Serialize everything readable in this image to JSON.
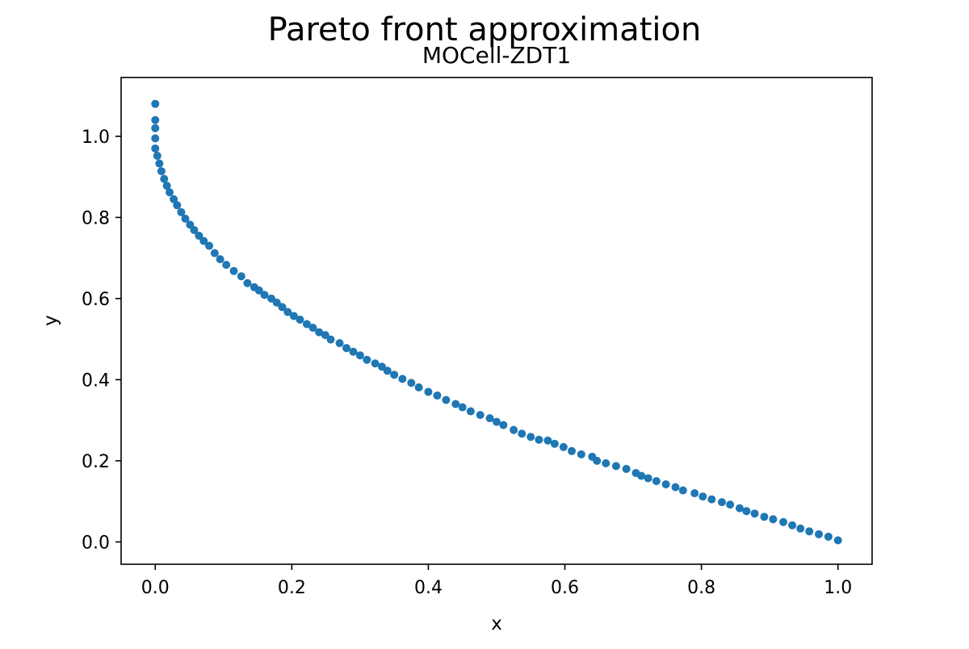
{
  "figure": {
    "suptitle": "Pareto front approximation"
  },
  "chart_data": {
    "type": "scatter",
    "title": "MOCell-ZDT1",
    "xlabel": "x",
    "ylabel": "y",
    "xlim": [
      -0.05,
      1.05
    ],
    "ylim": [
      -0.055,
      1.145
    ],
    "xticks": [
      0.0,
      0.2,
      0.4,
      0.6,
      0.8,
      1.0
    ],
    "xtick_labels": [
      "0.0",
      "0.2",
      "0.4",
      "0.6",
      "0.8",
      "1.0"
    ],
    "yticks": [
      0.0,
      0.2,
      0.4,
      0.6,
      0.8,
      1.0
    ],
    "ytick_labels": [
      "0.0",
      "0.2",
      "0.4",
      "0.6",
      "0.8",
      "1.0"
    ],
    "grid": false,
    "marker_color": "#1f77b4",
    "series": [
      {
        "points": [
          [
            0.0,
            1.08
          ],
          [
            0.0,
            1.04
          ],
          [
            0.0,
            1.02
          ],
          [
            0.0,
            0.995
          ],
          [
            0.0,
            0.97
          ],
          [
            0.003,
            0.952
          ],
          [
            0.006,
            0.933
          ],
          [
            0.009,
            0.914
          ],
          [
            0.013,
            0.895
          ],
          [
            0.017,
            0.878
          ],
          [
            0.021,
            0.862
          ],
          [
            0.027,
            0.845
          ],
          [
            0.032,
            0.83
          ],
          [
            0.038,
            0.813
          ],
          [
            0.044,
            0.797
          ],
          [
            0.051,
            0.782
          ],
          [
            0.057,
            0.769
          ],
          [
            0.064,
            0.755
          ],
          [
            0.071,
            0.742
          ],
          [
            0.079,
            0.73
          ],
          [
            0.087,
            0.712
          ],
          [
            0.095,
            0.697
          ],
          [
            0.104,
            0.683
          ],
          [
            0.115,
            0.668
          ],
          [
            0.126,
            0.655
          ],
          [
            0.135,
            0.638
          ],
          [
            0.145,
            0.628
          ],
          [
            0.152,
            0.62
          ],
          [
            0.16,
            0.609
          ],
          [
            0.17,
            0.6
          ],
          [
            0.178,
            0.59
          ],
          [
            0.186,
            0.579
          ],
          [
            0.194,
            0.567
          ],
          [
            0.203,
            0.557
          ],
          [
            0.212,
            0.548
          ],
          [
            0.222,
            0.537
          ],
          [
            0.231,
            0.528
          ],
          [
            0.24,
            0.517
          ],
          [
            0.249,
            0.51
          ],
          [
            0.257,
            0.499
          ],
          [
            0.27,
            0.49
          ],
          [
            0.28,
            0.478
          ],
          [
            0.29,
            0.469
          ],
          [
            0.3,
            0.46
          ],
          [
            0.31,
            0.449
          ],
          [
            0.322,
            0.44
          ],
          [
            0.332,
            0.432
          ],
          [
            0.34,
            0.422
          ],
          [
            0.35,
            0.412
          ],
          [
            0.362,
            0.402
          ],
          [
            0.375,
            0.392
          ],
          [
            0.386,
            0.381
          ],
          [
            0.4,
            0.37
          ],
          [
            0.413,
            0.361
          ],
          [
            0.426,
            0.35
          ],
          [
            0.44,
            0.34
          ],
          [
            0.45,
            0.332
          ],
          [
            0.462,
            0.322
          ],
          [
            0.476,
            0.313
          ],
          [
            0.49,
            0.305
          ],
          [
            0.5,
            0.296
          ],
          [
            0.51,
            0.288
          ],
          [
            0.525,
            0.276
          ],
          [
            0.537,
            0.267
          ],
          [
            0.55,
            0.259
          ],
          [
            0.562,
            0.252
          ],
          [
            0.575,
            0.25
          ],
          [
            0.585,
            0.242
          ],
          [
            0.598,
            0.234
          ],
          [
            0.61,
            0.224
          ],
          [
            0.624,
            0.216
          ],
          [
            0.64,
            0.21
          ],
          [
            0.647,
            0.2
          ],
          [
            0.66,
            0.194
          ],
          [
            0.675,
            0.187
          ],
          [
            0.69,
            0.18
          ],
          [
            0.704,
            0.17
          ],
          [
            0.712,
            0.163
          ],
          [
            0.722,
            0.157
          ],
          [
            0.734,
            0.15
          ],
          [
            0.748,
            0.142
          ],
          [
            0.762,
            0.135
          ],
          [
            0.773,
            0.127
          ],
          [
            0.79,
            0.12
          ],
          [
            0.802,
            0.112
          ],
          [
            0.815,
            0.105
          ],
          [
            0.83,
            0.098
          ],
          [
            0.842,
            0.092
          ],
          [
            0.856,
            0.083
          ],
          [
            0.866,
            0.076
          ],
          [
            0.878,
            0.07
          ],
          [
            0.892,
            0.062
          ],
          [
            0.905,
            0.056
          ],
          [
            0.92,
            0.049
          ],
          [
            0.933,
            0.041
          ],
          [
            0.945,
            0.033
          ],
          [
            0.958,
            0.026
          ],
          [
            0.972,
            0.019
          ],
          [
            0.986,
            0.013
          ],
          [
            1.0,
            0.004
          ]
        ]
      }
    ]
  }
}
